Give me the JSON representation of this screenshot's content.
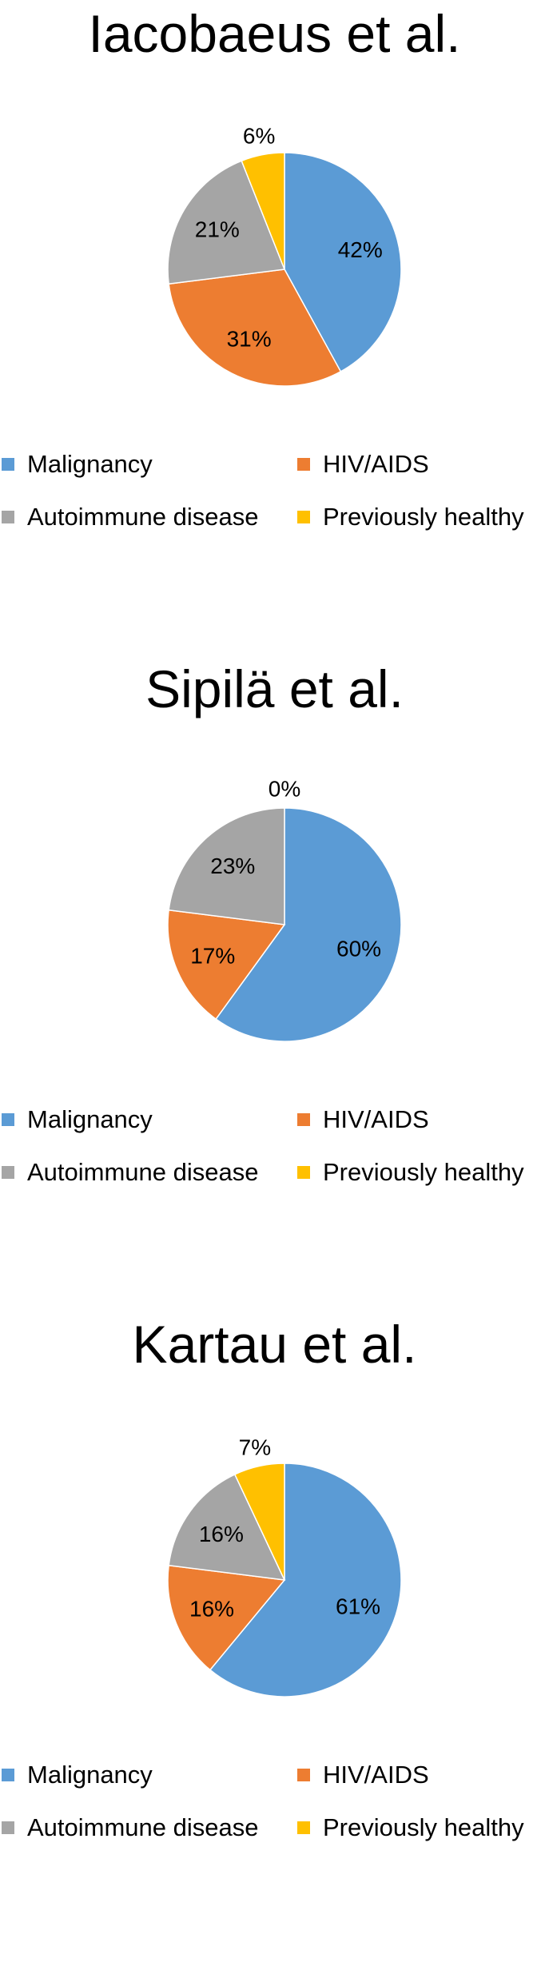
{
  "chart_data": [
    {
      "type": "pie",
      "title": "Iacobaeus et al.",
      "categories": [
        "Malignancy",
        "HIV/AIDS",
        "Autoimmune disease",
        "Previously healthy"
      ],
      "values": [
        42,
        31,
        21,
        6
      ],
      "data_labels": [
        "42%",
        "31%",
        "21%",
        "6%"
      ],
      "colors": [
        "#5B9BD5",
        "#ED7D31",
        "#A5A5A5",
        "#FFC000"
      ],
      "legend_position": "bottom"
    },
    {
      "type": "pie",
      "title": "Sipilä et al.",
      "categories": [
        "Malignancy",
        "HIV/AIDS",
        "Autoimmune disease",
        "Previously healthy"
      ],
      "values": [
        60,
        17,
        23,
        0
      ],
      "data_labels": [
        "60%",
        "17%",
        "23%",
        "0%"
      ],
      "colors": [
        "#5B9BD5",
        "#ED7D31",
        "#A5A5A5",
        "#FFC000"
      ],
      "legend_position": "bottom"
    },
    {
      "type": "pie",
      "title": "Kartau et al.",
      "categories": [
        "Malignancy",
        "HIV/AIDS",
        "Autoimmune disease",
        "Previously healthy"
      ],
      "values": [
        61,
        16,
        16,
        7
      ],
      "data_labels": [
        "61%",
        "16%",
        "16%",
        "7%"
      ],
      "colors": [
        "#5B9BD5",
        "#ED7D31",
        "#A5A5A5",
        "#FFC000"
      ],
      "legend_position": "bottom"
    }
  ]
}
